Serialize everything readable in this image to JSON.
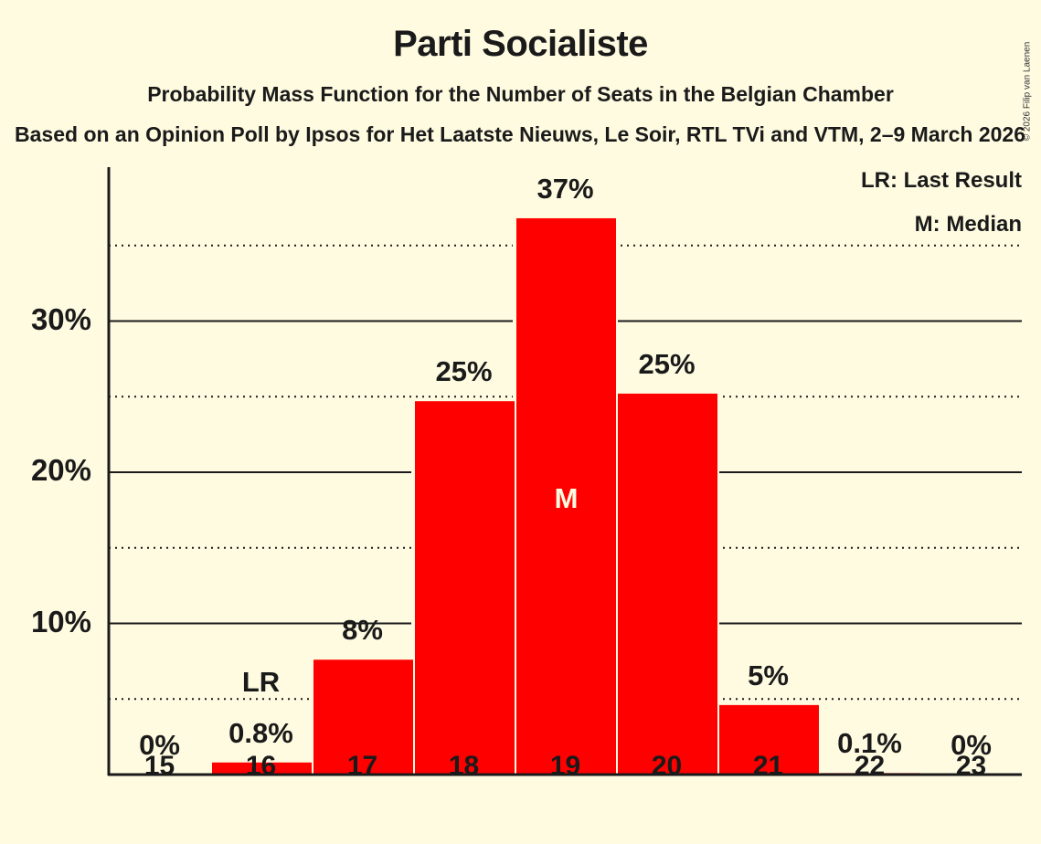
{
  "header": {
    "title": "Parti Socialiste",
    "subtitle": "Probability Mass Function for the Number of Seats in the Belgian Chamber",
    "subsubtitle": "Based on an Opinion Poll by Ipsos for Het Laatste Nieuws, Le Soir, RTL TVi and VTM, 2–9 March 2026",
    "copyright": "© 2026 Filip van Laenen"
  },
  "legend": {
    "lr": "LR: Last Result",
    "m": "M: Median"
  },
  "markers": {
    "last_result_label": "LR",
    "last_result_seats": 16,
    "median_label": "M",
    "median_seats": 19
  },
  "colors": {
    "bar": "#ff0000",
    "background": "#fffbe1",
    "text": "#1a1a1a"
  },
  "y_ticks": [
    "10%",
    "20%",
    "30%"
  ],
  "chart_data": {
    "type": "bar",
    "title": "Parti Socialiste",
    "subtitle": "Probability Mass Function for the Number of Seats in the Belgian Chamber",
    "xlabel": "",
    "ylabel": "",
    "categories": [
      "15",
      "16",
      "17",
      "18",
      "19",
      "20",
      "21",
      "22",
      "23"
    ],
    "values": [
      0,
      0.8,
      7.6,
      24.7,
      36.8,
      25.2,
      4.6,
      0.1,
      0
    ],
    "value_labels": [
      "0%",
      "0.8%",
      "8%",
      "25%",
      "37%",
      "25%",
      "5%",
      "0.1%",
      "0%"
    ],
    "ylim": [
      0,
      40
    ],
    "y_tick_values": [
      10,
      20,
      30
    ],
    "y_minor_gridlines": [
      5,
      15,
      25,
      35
    ],
    "grid": true,
    "legend_position": "top-right",
    "annotations": [
      {
        "category": "16",
        "text": "LR"
      },
      {
        "category": "19",
        "text": "M"
      }
    ]
  }
}
